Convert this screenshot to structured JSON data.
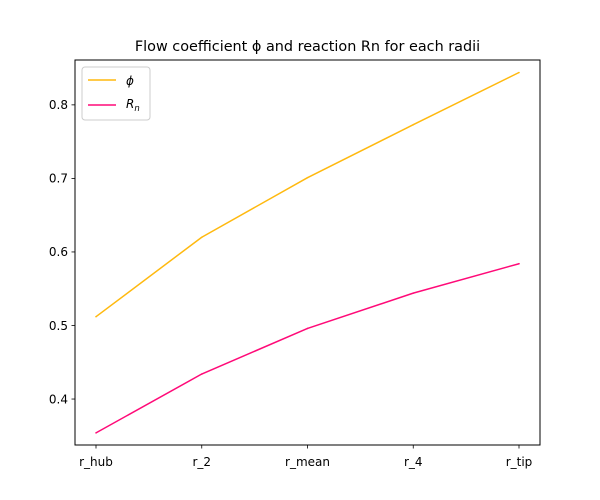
{
  "chart_data": {
    "type": "line",
    "title": "Flow coefficient ϕ and reaction Rn for each radii",
    "xlabel": "",
    "ylabel": "",
    "categories": [
      "r_hub",
      "r_2",
      "r_mean",
      "r_4",
      "r_tip"
    ],
    "series": [
      {
        "name": "ϕ",
        "color": "#ffb90f",
        "values": [
          0.512,
          0.62,
          0.701,
          0.773,
          0.844
        ]
      },
      {
        "name": "Rn",
        "color": "#ff0a78",
        "values": [
          0.354,
          0.434,
          0.496,
          0.544,
          0.584
        ]
      }
    ],
    "ylim": [
      0.3375,
      0.861
    ],
    "yticks": [
      0.4,
      0.5,
      0.6,
      0.7,
      0.8
    ],
    "ytick_labels": [
      "0.4",
      "0.5",
      "0.6",
      "0.7",
      "0.8"
    ],
    "grid": false,
    "legend_position": "top-left"
  }
}
